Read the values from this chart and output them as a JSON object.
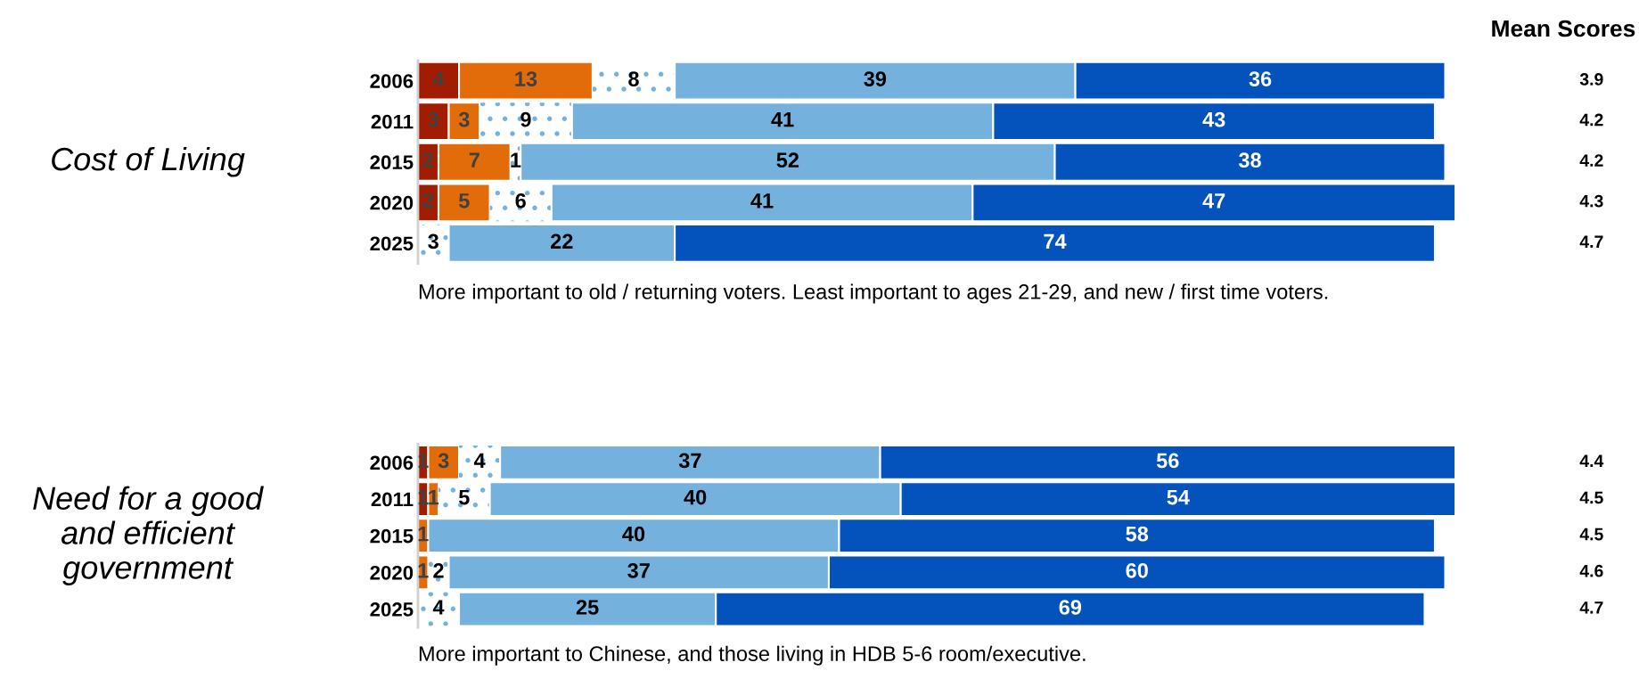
{
  "chart_data": [
    {
      "type": "bar",
      "orientation": "horizontal",
      "stacked": true,
      "title": "Cost of Living",
      "y2label": "Mean Scores",
      "categories": [
        "2006",
        "2011",
        "2015",
        "2020",
        "2025"
      ],
      "xlim": [
        0,
        101
      ],
      "tick_labels": "y",
      "data_labels": true,
      "grid": false,
      "legend": false,
      "series": [
        {
          "color": "#a21d00",
          "values": [
            4,
            3,
            2,
            2,
            null
          ]
        },
        {
          "color": "#e36c0a",
          "values": [
            13,
            3,
            7,
            5,
            null
          ]
        },
        {
          "color": "#ffffff",
          "values": [
            8,
            9,
            1,
            6,
            3
          ]
        },
        {
          "color": "#74b1dd",
          "values": [
            39,
            41,
            52,
            41,
            22
          ]
        },
        {
          "color": "#0453bd",
          "values": [
            36,
            43,
            38,
            47,
            74
          ]
        }
      ],
      "annotations": [
        "3.9",
        "4.2",
        "4.2",
        "4.3",
        "4.7",
        "More important to old / returning voters. Least important to ages 21-29, and new / first time voters."
      ]
    },
    {
      "type": "bar",
      "orientation": "horizontal",
      "stacked": true,
      "title": "Need for a good\nand efficient\ngovernment",
      "categories": [
        "2006",
        "2011",
        "2015",
        "2020",
        "2025"
      ],
      "xlim": [
        0,
        101
      ],
      "tick_labels": "y",
      "data_labels": true,
      "grid": false,
      "legend": false,
      "series": [
        {
          "color": "#a21d00",
          "values": [
            1,
            1,
            null,
            null,
            null
          ]
        },
        {
          "color": "#e36c0a",
          "values": [
            3,
            1,
            1,
            1,
            null
          ]
        },
        {
          "color": "#ffffff",
          "values": [
            4,
            5,
            null,
            2,
            4
          ]
        },
        {
          "color": "#74b1dd",
          "values": [
            37,
            40,
            40,
            37,
            25
          ]
        },
        {
          "color": "#0453bd",
          "values": [
            56,
            54,
            58,
            60,
            69
          ]
        }
      ],
      "annotations": [
        "4.4",
        "4.5",
        "4.5",
        "4.6",
        "4.7",
        "More important to Chinese, and those living in HDB 5-6 room/executive."
      ]
    }
  ]
}
